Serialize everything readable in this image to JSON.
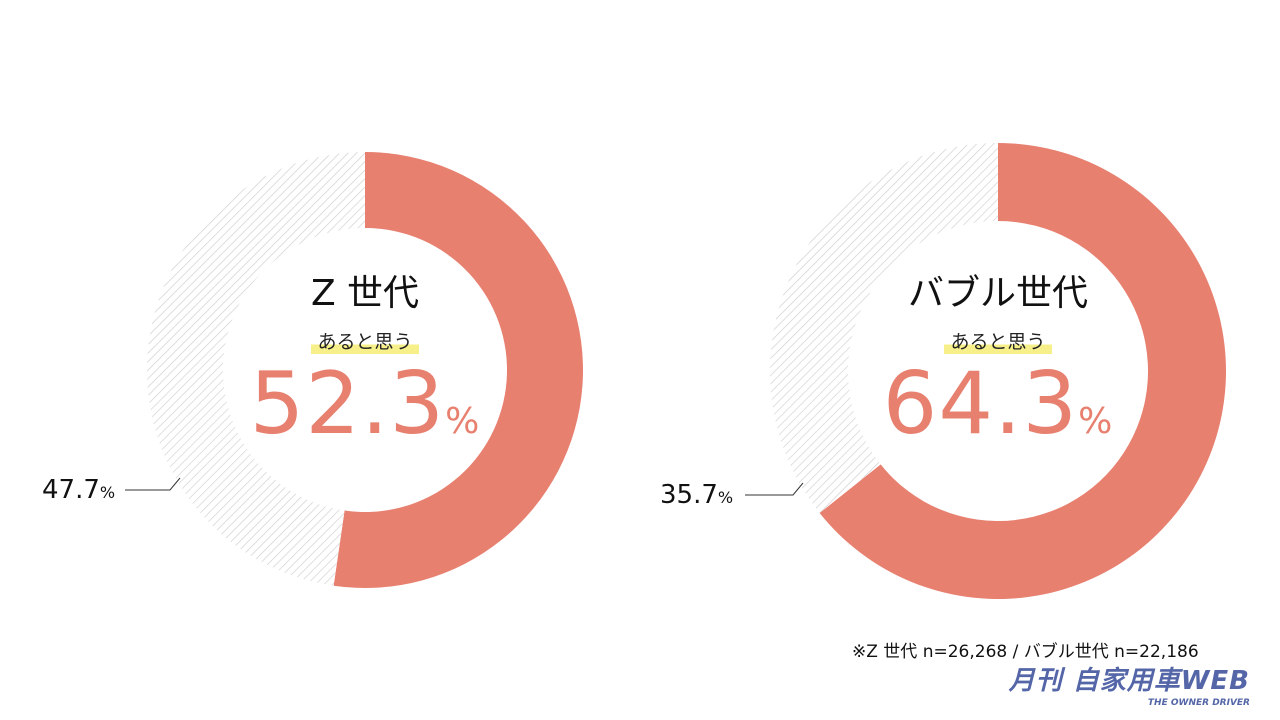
{
  "chart_data": [
    {
      "type": "pie",
      "variant": "donut",
      "title": "Z 世代",
      "subtitle": "あると思う",
      "slices": [
        {
          "label": "あると思う",
          "value": 52.3,
          "color": "#e88070"
        },
        {
          "label": "other",
          "value": 47.7,
          "color": "hatched-gray"
        }
      ],
      "center_value": "52.3",
      "other_value": "47.7",
      "unit": "%"
    },
    {
      "type": "pie",
      "variant": "donut",
      "title": "バブル世代",
      "subtitle": "あると思う",
      "slices": [
        {
          "label": "あると思う",
          "value": 64.3,
          "color": "#e88070"
        },
        {
          "label": "other",
          "value": 35.7,
          "color": "hatched-gray"
        }
      ],
      "center_value": "64.3",
      "other_value": "35.7",
      "unit": "%"
    }
  ],
  "note": "※Z 世代 n=26,268 / バブル世代 n=22,186",
  "logo": {
    "text": "月刊 自家用車WEB",
    "tagline": "THE OWNER DRIVER"
  }
}
